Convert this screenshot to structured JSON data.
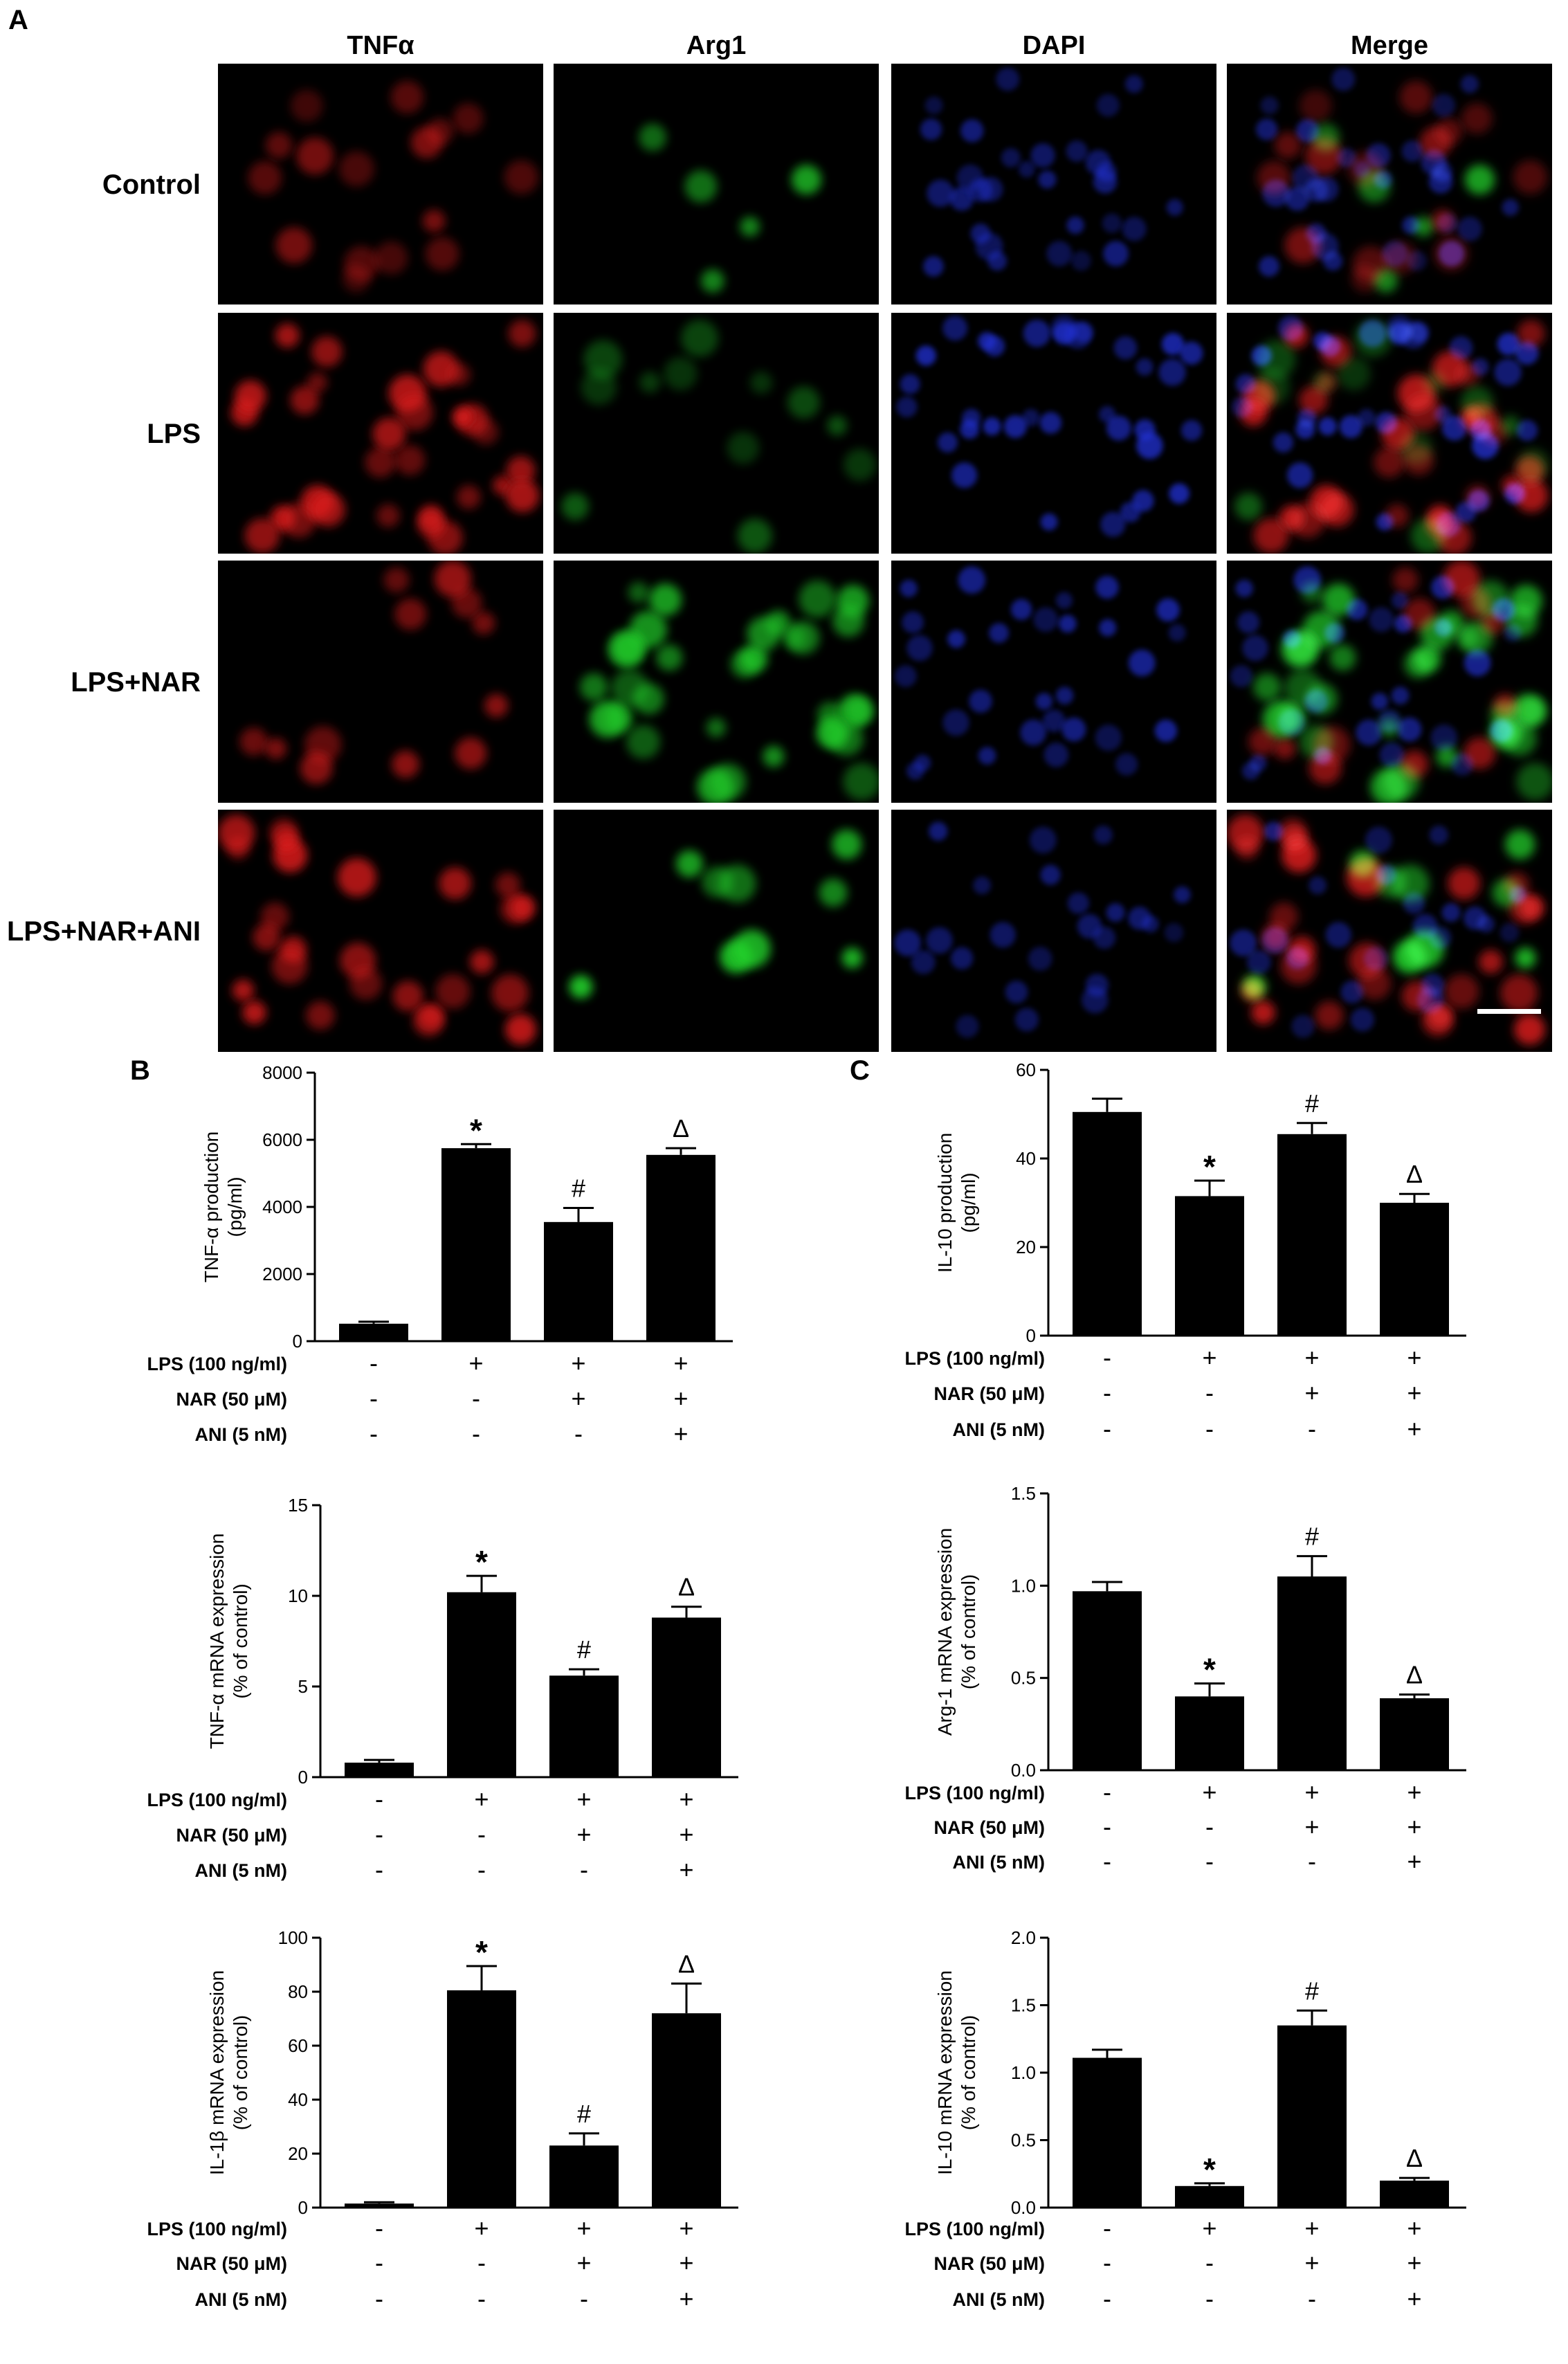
{
  "panel_labels": [
    "A",
    "B",
    "C"
  ],
  "micrographs": {
    "columns": [
      "TNFα",
      "Arg1",
      "DAPI",
      "Merge"
    ],
    "rows": [
      "Control",
      "LPS",
      "LPS+NAR",
      "LPS+NAR+ANI"
    ],
    "channel_colors": {
      "TNFα": "#e01a1a",
      "Arg1": "#22d12a",
      "DAPI": "#2233d8"
    }
  },
  "conditions": {
    "labels": [
      "LPS (100 ng/ml)",
      "NAR (50 μM)",
      "ANI (5 nM)"
    ],
    "matrix": [
      [
        "-",
        "+",
        "+",
        "+"
      ],
      [
        "-",
        "-",
        "+",
        "+"
      ],
      [
        "-",
        "-",
        "-",
        "+"
      ]
    ]
  },
  "chart_data": [
    {
      "type": "bar",
      "panel": "B",
      "ylabel": "TNF-α production (pg/ml)",
      "ylim": [
        0,
        8000
      ],
      "yticks": [
        0,
        2000,
        4000,
        6000,
        8000
      ],
      "values": [
        520,
        5750,
        3550,
        5550
      ],
      "errors": [
        60,
        120,
        420,
        200
      ],
      "annotations": [
        "",
        "*",
        "#",
        "Δ"
      ]
    },
    {
      "type": "bar",
      "panel": "C",
      "ylabel": "IL-10 production (pg/ml)",
      "ylim": [
        0,
        60
      ],
      "yticks": [
        0,
        20,
        40,
        60
      ],
      "values": [
        50.5,
        31.5,
        45.5,
        30
      ],
      "errors": [
        3,
        3.5,
        2.5,
        2
      ],
      "annotations": [
        "",
        "*",
        "#",
        "Δ"
      ]
    },
    {
      "type": "bar",
      "panel": "B",
      "ylabel": "TNF-α mRNA expression (% of control)",
      "ylim": [
        0,
        15
      ],
      "yticks": [
        0,
        5,
        10,
        15
      ],
      "values": [
        0.8,
        10.2,
        5.6,
        8.8
      ],
      "errors": [
        0.15,
        0.9,
        0.35,
        0.6
      ],
      "annotations": [
        "",
        "*",
        "#",
        "Δ"
      ]
    },
    {
      "type": "bar",
      "panel": "C",
      "ylabel": "Arg-1 mRNA expression (% of control)",
      "ylim": [
        0,
        1.5
      ],
      "yticks": [
        "0.0",
        "0.5",
        "1.0",
        "1.5"
      ],
      "values": [
        0.97,
        0.4,
        1.05,
        0.39
      ],
      "errors": [
        0.05,
        0.07,
        0.11,
        0.02
      ],
      "annotations": [
        "",
        "*",
        "#",
        "Δ"
      ]
    },
    {
      "type": "bar",
      "panel": "B",
      "ylabel": "IL-1β mRNA expression (% of control)",
      "ylim": [
        0,
        100
      ],
      "yticks": [
        0,
        20,
        40,
        60,
        80,
        100
      ],
      "values": [
        1.5,
        80.5,
        23,
        72
      ],
      "errors": [
        0.5,
        9,
        4.5,
        11
      ],
      "annotations": [
        "",
        "*",
        "#",
        "Δ"
      ]
    },
    {
      "type": "bar",
      "panel": "C",
      "ylabel": "IL-10 mRNA expression (% of control)",
      "ylim": [
        0,
        2.0
      ],
      "yticks": [
        "0.0",
        "0.5",
        "1.0",
        "1.5",
        "2.0"
      ],
      "values": [
        1.11,
        0.16,
        1.35,
        0.2
      ],
      "errors": [
        0.06,
        0.02,
        0.11,
        0.02
      ],
      "annotations": [
        "",
        "*",
        "#",
        "Δ"
      ]
    }
  ]
}
